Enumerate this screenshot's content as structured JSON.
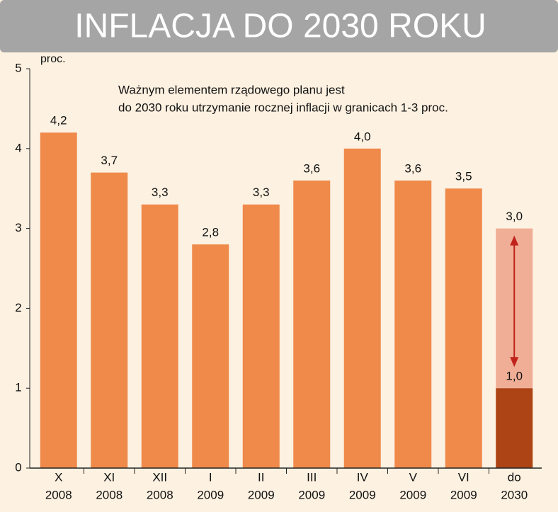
{
  "chart_data": {
    "type": "bar",
    "title": "INFLACJA DO 2030 ROKU",
    "y_unit": "proc.",
    "annotation": [
      "Ważnym elementem rządowego planu jest",
      "do 2030 roku utrzymanie rocznej inflacji w granicach 1-3 proc."
    ],
    "categories": [
      [
        "X",
        "2008"
      ],
      [
        "XI",
        "2008"
      ],
      [
        "XII",
        "2008"
      ],
      [
        "I",
        "2009"
      ],
      [
        "II",
        "2009"
      ],
      [
        "III",
        "2009"
      ],
      [
        "IV",
        "2009"
      ],
      [
        "V",
        "2009"
      ],
      [
        "VI",
        "2009"
      ],
      [
        "do",
        "2030"
      ]
    ],
    "values": [
      4.2,
      3.7,
      3.3,
      2.8,
      3.3,
      3.6,
      4.0,
      3.6,
      3.5,
      null
    ],
    "value_labels": [
      "4,2",
      "3,7",
      "3,3",
      "2,8",
      "3,3",
      "3,6",
      "4,0",
      "3,6",
      "3,5",
      null
    ],
    "color": "#ef8a4b",
    "target": {
      "low": 1.0,
      "high": 3.0,
      "low_label": "1,0",
      "high_label": "3,0",
      "low_color": "#ad4415",
      "range_color": "#f0ae96",
      "arrow_color": "#c0231b"
    },
    "ylim": [
      0,
      5
    ],
    "yticks": [
      0,
      1,
      2,
      3,
      4,
      5
    ],
    "grid": false
  }
}
